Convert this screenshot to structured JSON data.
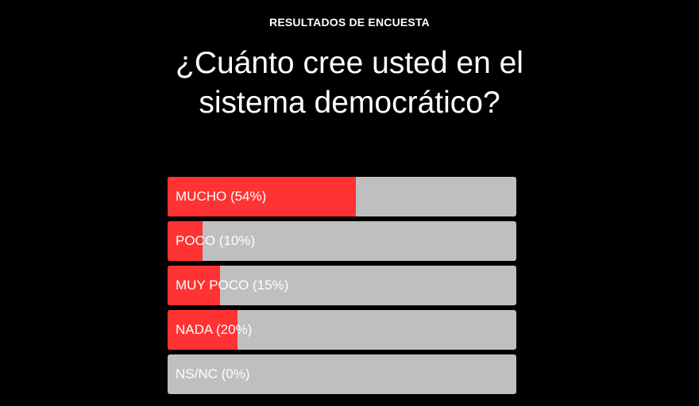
{
  "survey": {
    "kicker": "RESULTADOS DE ENCUESTA",
    "question": "¿Cuánto cree usted en el sistema democrático?"
  },
  "colors": {
    "background": "#000000",
    "fill": "#ff3333",
    "track": "#bfbfc1",
    "text": "#ffffff"
  },
  "chart_data": {
    "type": "bar",
    "orientation": "horizontal",
    "categories": [
      "MUCHO",
      "POCO",
      "MUY POCO",
      "NADA",
      "NS/NC"
    ],
    "values": [
      54,
      10,
      15,
      20,
      0
    ],
    "labels": [
      "MUCHO (54%)",
      "POCO (10%)",
      "MUY POCO (15%)",
      "NADA (20%)",
      "NS/NC (0%)"
    ],
    "xlim": [
      0,
      100
    ]
  }
}
